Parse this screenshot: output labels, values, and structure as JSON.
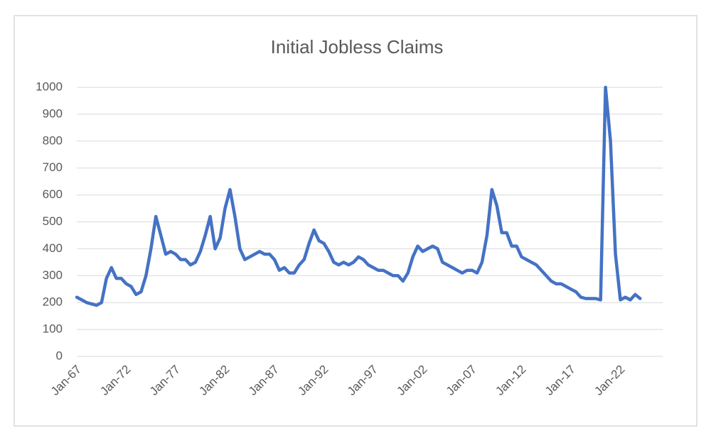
{
  "chart_data": {
    "type": "line",
    "title": "Initial Jobless Claims",
    "categories": [
      "Jan-67",
      null,
      null,
      null,
      null,
      null,
      null,
      null,
      null,
      null,
      "Jan-72",
      null,
      null,
      null,
      null,
      null,
      null,
      null,
      null,
      null,
      "Jan-77",
      null,
      null,
      null,
      null,
      null,
      null,
      null,
      null,
      null,
      "Jan-82",
      null,
      null,
      null,
      null,
      null,
      null,
      null,
      null,
      null,
      "Jan-87",
      null,
      null,
      null,
      null,
      null,
      null,
      null,
      null,
      null,
      "Jan-92",
      null,
      null,
      null,
      null,
      null,
      null,
      null,
      null,
      null,
      "Jan-97",
      null,
      null,
      null,
      null,
      null,
      null,
      null,
      null,
      null,
      "Jan-02",
      null,
      null,
      null,
      null,
      null,
      null,
      null,
      null,
      null,
      "Jan-07",
      null,
      null,
      null,
      null,
      null,
      null,
      null,
      null,
      null,
      "Jan-12",
      null,
      null,
      null,
      null,
      null,
      null,
      null,
      null,
      null,
      "Jan-17",
      null,
      null,
      null,
      null,
      null,
      null,
      null,
      null,
      null,
      "Jan-22",
      null,
      null,
      null,
      null
    ],
    "series": [
      {
        "name": "Initial Jobless Claims",
        "color": "#4472c4",
        "values": [
          220,
          210,
          200,
          195,
          190,
          200,
          290,
          330,
          290,
          290,
          270,
          260,
          230,
          240,
          300,
          400,
          520,
          450,
          380,
          390,
          380,
          360,
          360,
          340,
          350,
          390,
          450,
          520,
          400,
          440,
          550,
          620,
          520,
          400,
          360,
          370,
          380,
          390,
          380,
          380,
          360,
          320,
          330,
          310,
          310,
          340,
          360,
          420,
          470,
          430,
          420,
          390,
          350,
          340,
          350,
          340,
          350,
          370,
          360,
          340,
          330,
          320,
          320,
          310,
          300,
          300,
          280,
          310,
          370,
          410,
          390,
          400,
          410,
          400,
          350,
          340,
          330,
          320,
          310,
          320,
          320,
          310,
          350,
          450,
          620,
          560,
          460,
          460,
          410,
          410,
          370,
          360,
          350,
          340,
          320,
          300,
          280,
          270,
          270,
          260,
          250,
          240,
          220,
          215,
          215,
          215,
          210,
          1000,
          800,
          380,
          210,
          220,
          210,
          230,
          215
        ]
      }
    ],
    "ylim": [
      0,
      1000
    ],
    "yticks": [
      0,
      100,
      200,
      300,
      400,
      500,
      600,
      700,
      800,
      900,
      1000
    ],
    "grid": true
  }
}
